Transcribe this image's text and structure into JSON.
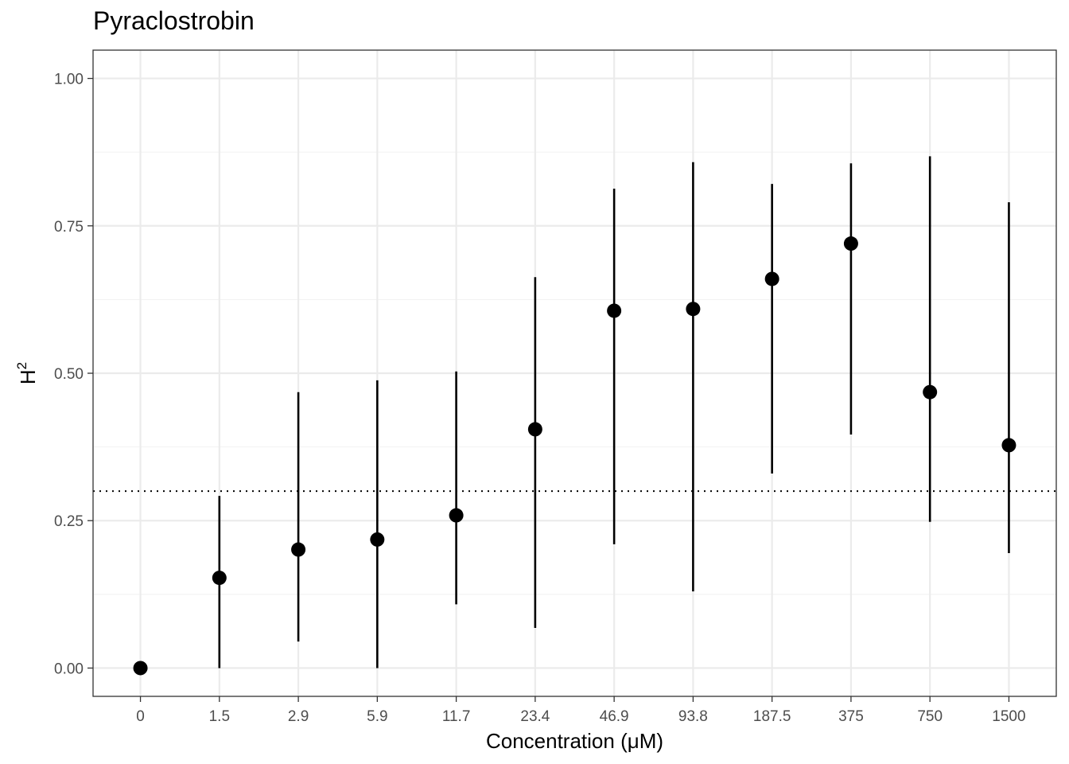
{
  "chart_data": {
    "type": "scatter",
    "title": "Pyraclostrobin",
    "xlabel": "Concentration (μM)",
    "ylabel_base": "H",
    "ylabel_sup": "2",
    "categories": [
      "0",
      "1.5",
      "2.9",
      "5.9",
      "11.7",
      "23.4",
      "46.9",
      "93.8",
      "187.5",
      "375",
      "750",
      "1500"
    ],
    "series": [
      {
        "values": [
          0.0,
          0.153,
          0.201,
          0.218,
          0.259,
          0.405,
          0.606,
          0.609,
          0.66,
          0.72,
          0.468,
          0.378
        ],
        "lower": [
          0.0,
          0.0,
          0.045,
          0.0,
          0.108,
          0.068,
          0.21,
          0.13,
          0.33,
          0.396,
          0.248,
          0.195
        ],
        "upper": [
          0.0,
          0.292,
          0.468,
          0.488,
          0.503,
          0.663,
          0.813,
          0.858,
          0.821,
          0.856,
          0.868,
          0.79
        ]
      }
    ],
    "reference_line": 0.3,
    "ylim": [
      -0.048,
      1.048
    ],
    "yticks": [
      "0.00",
      "0.25",
      "0.50",
      "0.75",
      "1.00"
    ],
    "ytick_values": [
      0,
      0.25,
      0.5,
      0.75,
      1.0
    ],
    "grid": true
  },
  "colors": {
    "points": "#000000",
    "grid_major": "#ebebeb",
    "grid_minor": "#f3f3f3",
    "panel_border": "#333333",
    "tick_text": "#4d4d4d"
  }
}
